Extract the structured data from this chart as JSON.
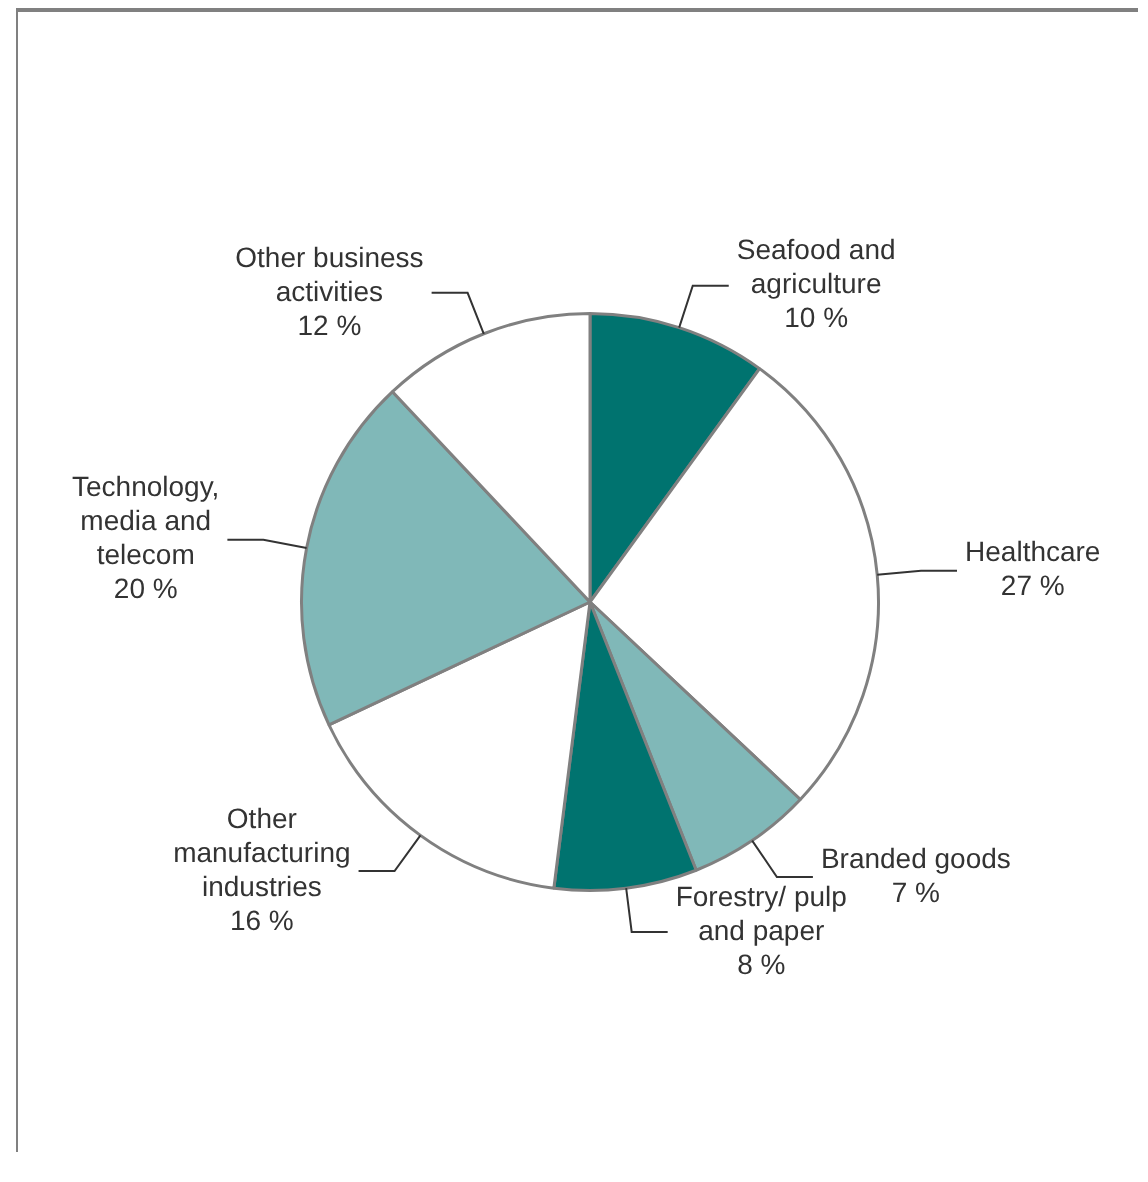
{
  "chart_data": {
    "type": "pie",
    "categories": [
      "Seafood and agriculture",
      "Healthcare",
      "Branded goods",
      "Forestry/ pulp and paper",
      "Other manufacturing industries",
      "Technology, media and telecom",
      "Other business activities"
    ],
    "values": [
      10,
      27,
      7,
      8,
      16,
      20,
      12
    ],
    "colors": [
      "#00736f",
      "#ffffff",
      "#80b8b8",
      "#00736f",
      "#ffffff",
      "#80b8b8",
      "#ffffff"
    ],
    "value_labels": [
      "10 %",
      "27 %",
      "7 %",
      "8 %",
      "16 %",
      "20 %",
      "12 %"
    ]
  }
}
